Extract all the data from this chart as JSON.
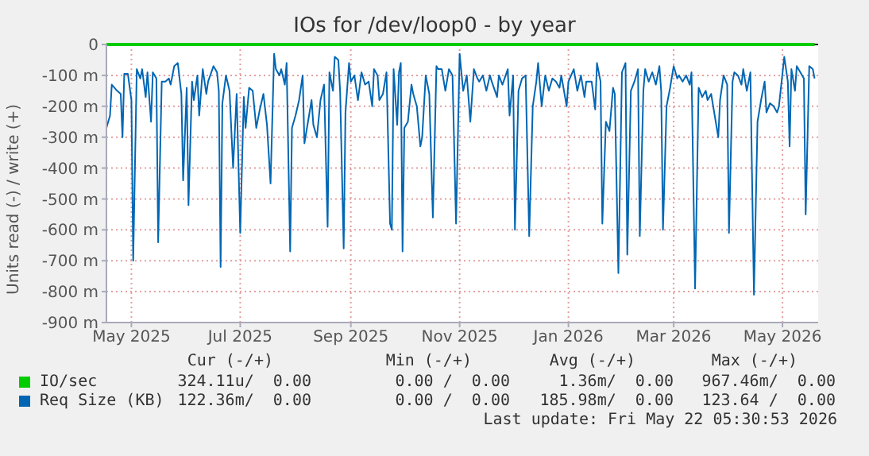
{
  "chart_data": {
    "type": "line",
    "title": "IOs for /dev/loop0 - by year",
    "ylabel": "Units read (-) / write (+)",
    "xlim": [
      "2025-04-17",
      "2026-05-21"
    ],
    "xticks": [
      {
        "value": "2025-05-01",
        "label": "May 2025"
      },
      {
        "value": "2025-07-01",
        "label": "Jul 2025"
      },
      {
        "value": "2025-09-01",
        "label": "Sep 2025"
      },
      {
        "value": "2025-11-01",
        "label": "Nov 2025"
      },
      {
        "value": "2026-01-01",
        "label": "Jan 2026"
      },
      {
        "value": "2026-03-01",
        "label": "Mar 2026"
      },
      {
        "value": "2026-05-01",
        "label": "May 2026"
      }
    ],
    "ylim": [
      -900,
      0
    ],
    "yticks": [
      {
        "value": -900,
        "label": "-900 m"
      },
      {
        "value": -800,
        "label": "-800 m"
      },
      {
        "value": -700,
        "label": "-700 m"
      },
      {
        "value": -600,
        "label": "-600 m"
      },
      {
        "value": -500,
        "label": "-500 m"
      },
      {
        "value": -400,
        "label": "-400 m"
      },
      {
        "value": -300,
        "label": "-300 m"
      },
      {
        "value": -200,
        "label": "-200 m"
      },
      {
        "value": -100,
        "label": "-100 m"
      },
      0
    ],
    "grid": true,
    "legend": "bottom",
    "ref_lines": [
      {
        "axis": "y",
        "value": 0,
        "color": "#000000"
      }
    ],
    "annotations": [
      "Cur (-/+)",
      "Min (-/+)",
      "Avg (-/+)",
      "Max (-/+)",
      "324.11u/  0.00",
      "0.00 /  0.00",
      "1.36m/  0.00",
      "967.46m/  0.00",
      "122.36m/  0.00",
      "0.00 /  0.00",
      "185.98m/  0.00",
      "123.64 /  0.00",
      "Last update: Fri May 22 05:30:53 2026"
    ],
    "x": [
      "2025-04-17",
      "2025-07-01",
      "2025-10-01",
      "2026-01-01",
      "2026-04-01",
      "2026-05-19"
    ],
    "series": [
      {
        "name": "IO/sec",
        "color": "#00cc00",
        "values": [
          0,
          0,
          0,
          0,
          0,
          0
        ]
      },
      {
        "name": "Req Size (KB)",
        "color": "#0066b3",
        "x": [
          "2025-04-17",
          "2025-04-19",
          "2025-04-20",
          "2025-04-23",
          "2025-04-25",
          "2025-04-26",
          "2025-04-27",
          "2025-04-29",
          "2025-05-01",
          "2025-05-02",
          "2025-05-04",
          "2025-05-06",
          "2025-05-07",
          "2025-05-09",
          "2025-05-10",
          "2025-05-12",
          "2025-05-13",
          "2025-05-15",
          "2025-05-16",
          "2025-05-18",
          "2025-05-20",
          "2025-05-22",
          "2025-05-23",
          "2025-05-25",
          "2025-05-27",
          "2025-05-29",
          "2025-05-30",
          "2025-06-01",
          "2025-06-02",
          "2025-06-04",
          "2025-06-05",
          "2025-06-07",
          "2025-06-08",
          "2025-06-10",
          "2025-06-12",
          "2025-06-13",
          "2025-06-16",
          "2025-06-18",
          "2025-06-19",
          "2025-06-20",
          "2025-06-21",
          "2025-06-23",
          "2025-06-25",
          "2025-06-27",
          "2025-06-29",
          "2025-07-01",
          "2025-07-03",
          "2025-07-04",
          "2025-07-06",
          "2025-07-08",
          "2025-07-10",
          "2025-07-12",
          "2025-07-14",
          "2025-07-16",
          "2025-07-18",
          "2025-07-20",
          "2025-07-21",
          "2025-07-23",
          "2025-07-24",
          "2025-07-26",
          "2025-07-27",
          "2025-07-29",
          "2025-07-30",
          "2025-08-01",
          "2025-08-03",
          "2025-08-05",
          "2025-08-06",
          "2025-08-08",
          "2025-08-10",
          "2025-08-11",
          "2025-08-13",
          "2025-08-15",
          "2025-08-17",
          "2025-08-19",
          "2025-08-20",
          "2025-08-22",
          "2025-08-23",
          "2025-08-25",
          "2025-08-26",
          "2025-08-28",
          "2025-08-29",
          "2025-08-31",
          "2025-09-01",
          "2025-09-03",
          "2025-09-05",
          "2025-09-07",
          "2025-09-09",
          "2025-09-11",
          "2025-09-13",
          "2025-09-14",
          "2025-09-16",
          "2025-09-17",
          "2025-09-19",
          "2025-09-21",
          "2025-09-23",
          "2025-09-24",
          "2025-09-25",
          "2025-09-27",
          "2025-09-28",
          "2025-09-29",
          "2025-09-30",
          "2025-10-01",
          "2025-10-03",
          "2025-10-05",
          "2025-10-06",
          "2025-10-08",
          "2025-10-10",
          "2025-10-11",
          "2025-10-13",
          "2025-10-15",
          "2025-10-17",
          "2025-10-19",
          "2025-10-20",
          "2025-10-22",
          "2025-10-24",
          "2025-10-26",
          "2025-10-28",
          "2025-10-30",
          "2025-11-01",
          "2025-11-03",
          "2025-11-05",
          "2025-11-07",
          "2025-11-09",
          "2025-11-11",
          "2025-11-12",
          "2025-11-14",
          "2025-11-16",
          "2025-11-18",
          "2025-11-19",
          "2025-11-22",
          "2025-11-23",
          "2025-11-25",
          "2025-11-28",
          "2025-11-29",
          "2025-12-01",
          "2025-12-02",
          "2025-12-04",
          "2025-12-06",
          "2025-12-08",
          "2025-12-10",
          "2025-12-12",
          "2025-12-14",
          "2025-12-15",
          "2025-12-17",
          "2025-12-19",
          "2025-12-21",
          "2025-12-23",
          "2025-12-25",
          "2025-12-27",
          "2025-12-28",
          "2025-12-31",
          "2026-01-01",
          "2026-01-04",
          "2026-01-06",
          "2026-01-08",
          "2026-01-10",
          "2026-01-11",
          "2026-01-14",
          "2026-01-16",
          "2026-01-17",
          "2026-01-19",
          "2026-01-20",
          "2026-01-22",
          "2026-01-24",
          "2026-01-26",
          "2026-01-27",
          "2026-01-29",
          "2026-01-31",
          "2026-02-02",
          "2026-02-03",
          "2026-02-05",
          "2026-02-07",
          "2026-02-09",
          "2026-02-10",
          "2026-02-12",
          "2026-02-13",
          "2026-02-15",
          "2026-02-17",
          "2026-02-19",
          "2026-02-21",
          "2026-02-22",
          "2026-02-23",
          "2026-02-25",
          "2026-02-27",
          "2026-03-01",
          "2026-03-03",
          "2026-03-04",
          "2026-03-06",
          "2026-03-08",
          "2026-03-10",
          "2026-03-11",
          "2026-03-13",
          "2026-03-15",
          "2026-03-17",
          "2026-03-19",
          "2026-03-20",
          "2026-03-22",
          "2026-03-24",
          "2026-03-26",
          "2026-03-27",
          "2026-03-29",
          "2026-03-31",
          "2026-04-01",
          "2026-04-03",
          "2026-04-04",
          "2026-04-06",
          "2026-04-08",
          "2026-04-09",
          "2026-04-11",
          "2026-04-13",
          "2026-04-15",
          "2026-04-17",
          "2026-04-19",
          "2026-04-21",
          "2026-04-22",
          "2026-04-24",
          "2026-04-26",
          "2026-04-28",
          "2026-04-29",
          "2026-05-02",
          "2026-05-04",
          "2026-05-05",
          "2026-05-06",
          "2026-05-08",
          "2026-05-09",
          "2026-05-11",
          "2026-05-13",
          "2026-05-14",
          "2026-05-16",
          "2026-05-18",
          "2026-05-19"
        ],
        "values": [
          -270,
          -230,
          -130,
          -150,
          -160,
          -300,
          -95,
          -95,
          -180,
          -700,
          -80,
          -110,
          -80,
          -170,
          -90,
          -250,
          -90,
          -110,
          -640,
          -120,
          -120,
          -110,
          -130,
          -70,
          -60,
          -160,
          -440,
          -140,
          -520,
          -120,
          -180,
          -100,
          -230,
          -80,
          -160,
          -120,
          -70,
          -90,
          -150,
          -720,
          -190,
          -100,
          -150,
          -400,
          -160,
          -610,
          -170,
          -270,
          -140,
          -150,
          -270,
          -210,
          -160,
          -260,
          -450,
          -30,
          -80,
          -100,
          -80,
          -130,
          -60,
          -670,
          -270,
          -230,
          -180,
          -100,
          -320,
          -250,
          -180,
          -260,
          -300,
          -180,
          -130,
          -590,
          -90,
          -150,
          -40,
          -50,
          -150,
          -660,
          -220,
          -60,
          -120,
          -100,
          -180,
          -90,
          -130,
          -120,
          -200,
          -80,
          -100,
          -180,
          -160,
          -90,
          -580,
          -600,
          -80,
          -260,
          -90,
          -60,
          -670,
          -270,
          -250,
          -130,
          -160,
          -200,
          -330,
          -300,
          -100,
          -160,
          -560,
          -70,
          -80,
          -80,
          -150,
          -80,
          -100,
          -580,
          -30,
          -150,
          -100,
          -250,
          -80,
          -110,
          -120,
          -100,
          -150,
          -100,
          -120,
          -170,
          -100,
          -130,
          -80,
          -230,
          -100,
          -600,
          -150,
          -110,
          -100,
          -620,
          -200,
          -120,
          -60,
          -200,
          -100,
          -150,
          -110,
          -120,
          -140,
          -100,
          -200,
          -120,
          -80,
          -150,
          -100,
          -170,
          -120,
          -120,
          -210,
          -60,
          -120,
          -580,
          -250,
          -280,
          -140,
          -160,
          -740,
          -90,
          -60,
          -680,
          -150,
          -120,
          -80,
          -620,
          -150,
          -80,
          -120,
          -90,
          -130,
          -70,
          -150,
          -600,
          -200,
          -140,
          -70,
          -110,
          -100,
          -120,
          -100,
          -130,
          -90,
          -790,
          -140,
          -170,
          -150,
          -180,
          -160,
          -230,
          -300,
          -180,
          -100,
          -130,
          -610,
          -120,
          -90,
          -100,
          -130,
          -80,
          -150,
          -90,
          -810,
          -250,
          -180,
          -120,
          -220,
          -190,
          -200,
          -220,
          -200,
          -40,
          -120,
          -330,
          -80,
          -150,
          -70,
          -90,
          -110,
          -550,
          -70,
          -80,
          -110
        ]
      }
    ]
  }
}
